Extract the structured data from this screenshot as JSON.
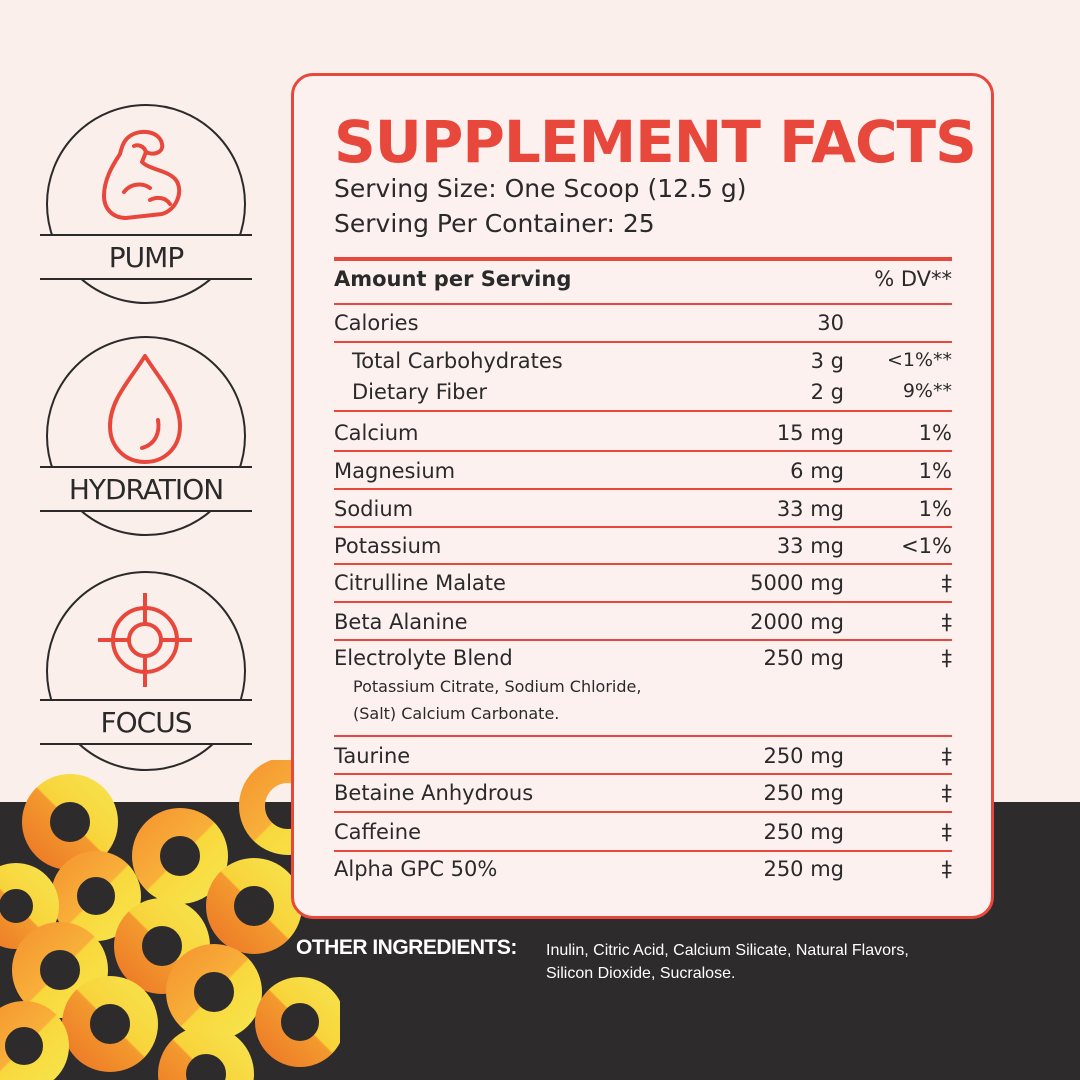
{
  "badges": [
    {
      "label": "PUMP",
      "icon": "flexed-arm-icon"
    },
    {
      "label": "HYDRATION",
      "icon": "water-drop-icon"
    },
    {
      "label": "FOCUS",
      "icon": "crosshair-icon"
    }
  ],
  "facts": {
    "title": "SUPPLEMENT FACTS",
    "serving_size": "Serving Size: One Scoop (12.5 g)",
    "servings_per_container": "Serving Per Container: 25",
    "header": {
      "label": "Amount per Serving",
      "dv": "% DV**"
    },
    "rows": [
      {
        "name": "Calories",
        "amount": "30",
        "dv": ""
      },
      {
        "name": "Total Carbohydrates",
        "amount": "3 g",
        "dv": "<1%**"
      },
      {
        "name": "Dietary Fiber",
        "amount": "2 g",
        "dv": "9%**"
      },
      {
        "name": "Calcium",
        "amount": "15 mg",
        "dv": "1%"
      },
      {
        "name": "Magnesium",
        "amount": "6 mg",
        "dv": "1%"
      },
      {
        "name": "Sodium",
        "amount": "33 mg",
        "dv": "1%"
      },
      {
        "name": "Potassium",
        "amount": "33 mg",
        "dv": "<1%"
      },
      {
        "name": "Citrulline Malate",
        "amount": "5000 mg",
        "dv": "‡"
      },
      {
        "name": "Beta Alanine",
        "amount": "2000 mg",
        "dv": "‡"
      },
      {
        "name": "Electrolyte Blend",
        "amount": "250 mg",
        "dv": "‡"
      },
      {
        "name": "Taurine",
        "amount": "250 mg",
        "dv": "‡"
      },
      {
        "name": "Betaine Anhydrous",
        "amount": "250 mg",
        "dv": "‡"
      },
      {
        "name": "Caffeine",
        "amount": "250 mg",
        "dv": "‡"
      },
      {
        "name": "Alpha GPC 50%",
        "amount": "250 mg",
        "dv": "‡"
      }
    ],
    "electrolyte_detail_line1": "Potassium Citrate, Sodium Chloride,",
    "electrolyte_detail_line2": "(Salt) Calcium Carbonate."
  },
  "other_ingredients": {
    "label": "OTHER INGREDIENTS:",
    "line1": "Inulin, Citric Acid, Calcium Silicate, Natural Flavors,",
    "line2": "Silicon Dioxide, Sucralose."
  },
  "colors": {
    "accent": "#e8473b",
    "dark": "#2d2b2b",
    "background": "#fbefeb",
    "gummy_orange": "#f08a2a",
    "gummy_yellow": "#f8d33a"
  }
}
